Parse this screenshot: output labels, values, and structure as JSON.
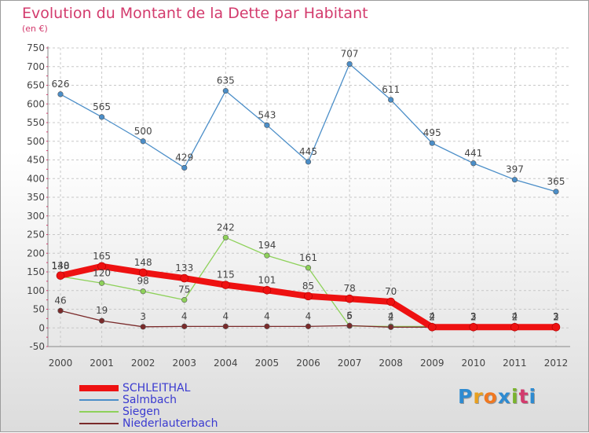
{
  "title": "Evolution du Montant de la Dette par Habitant",
  "subtitle": "(en €)",
  "logo": {
    "text": "Proxiti",
    "letters": [
      "P",
      "r",
      "o",
      "x",
      "i",
      "t",
      "i"
    ],
    "colors": [
      "#2e8bd1",
      "#e8a020",
      "#f07820",
      "#2e8bd1",
      "#7ab32e",
      "#d33b6d",
      "#2e8bd1"
    ]
  },
  "chart_data": {
    "type": "line",
    "title": "Evolution du Montant de la Dette par Habitant",
    "subtitle": "(en €)",
    "x": [
      2000,
      2001,
      2002,
      2003,
      2004,
      2005,
      2006,
      2007,
      2008,
      2009,
      2010,
      2011,
      2012
    ],
    "ylim": [
      -50,
      750
    ],
    "yticks": [
      -50,
      0,
      50,
      100,
      150,
      200,
      250,
      300,
      350,
      400,
      450,
      500,
      550,
      600,
      650,
      700,
      750
    ],
    "grid": true,
    "legend": "bottom-left",
    "series": [
      {
        "name": "SCHLEITHAL",
        "color": "#ee1111",
        "values": [
          140,
          165,
          148,
          133,
          115,
          101,
          85,
          78,
          70,
          2,
          2,
          2,
          2
        ]
      },
      {
        "name": "Salmbach",
        "color": "#4b8ec8",
        "values": [
          626,
          565,
          500,
          429,
          635,
          543,
          445,
          707,
          611,
          495,
          441,
          397,
          365
        ]
      },
      {
        "name": "Siegen",
        "color": "#8ed15a",
        "values": [
          138,
          120,
          98,
          75,
          242,
          194,
          161,
          5,
          4,
          4,
          3,
          4,
          3
        ]
      },
      {
        "name": "Niederlauterbach",
        "color": "#7a2a2a",
        "values": [
          46,
          19,
          3,
          4,
          4,
          4,
          4,
          6,
          2,
          2,
          3,
          2,
          2
        ]
      }
    ]
  }
}
